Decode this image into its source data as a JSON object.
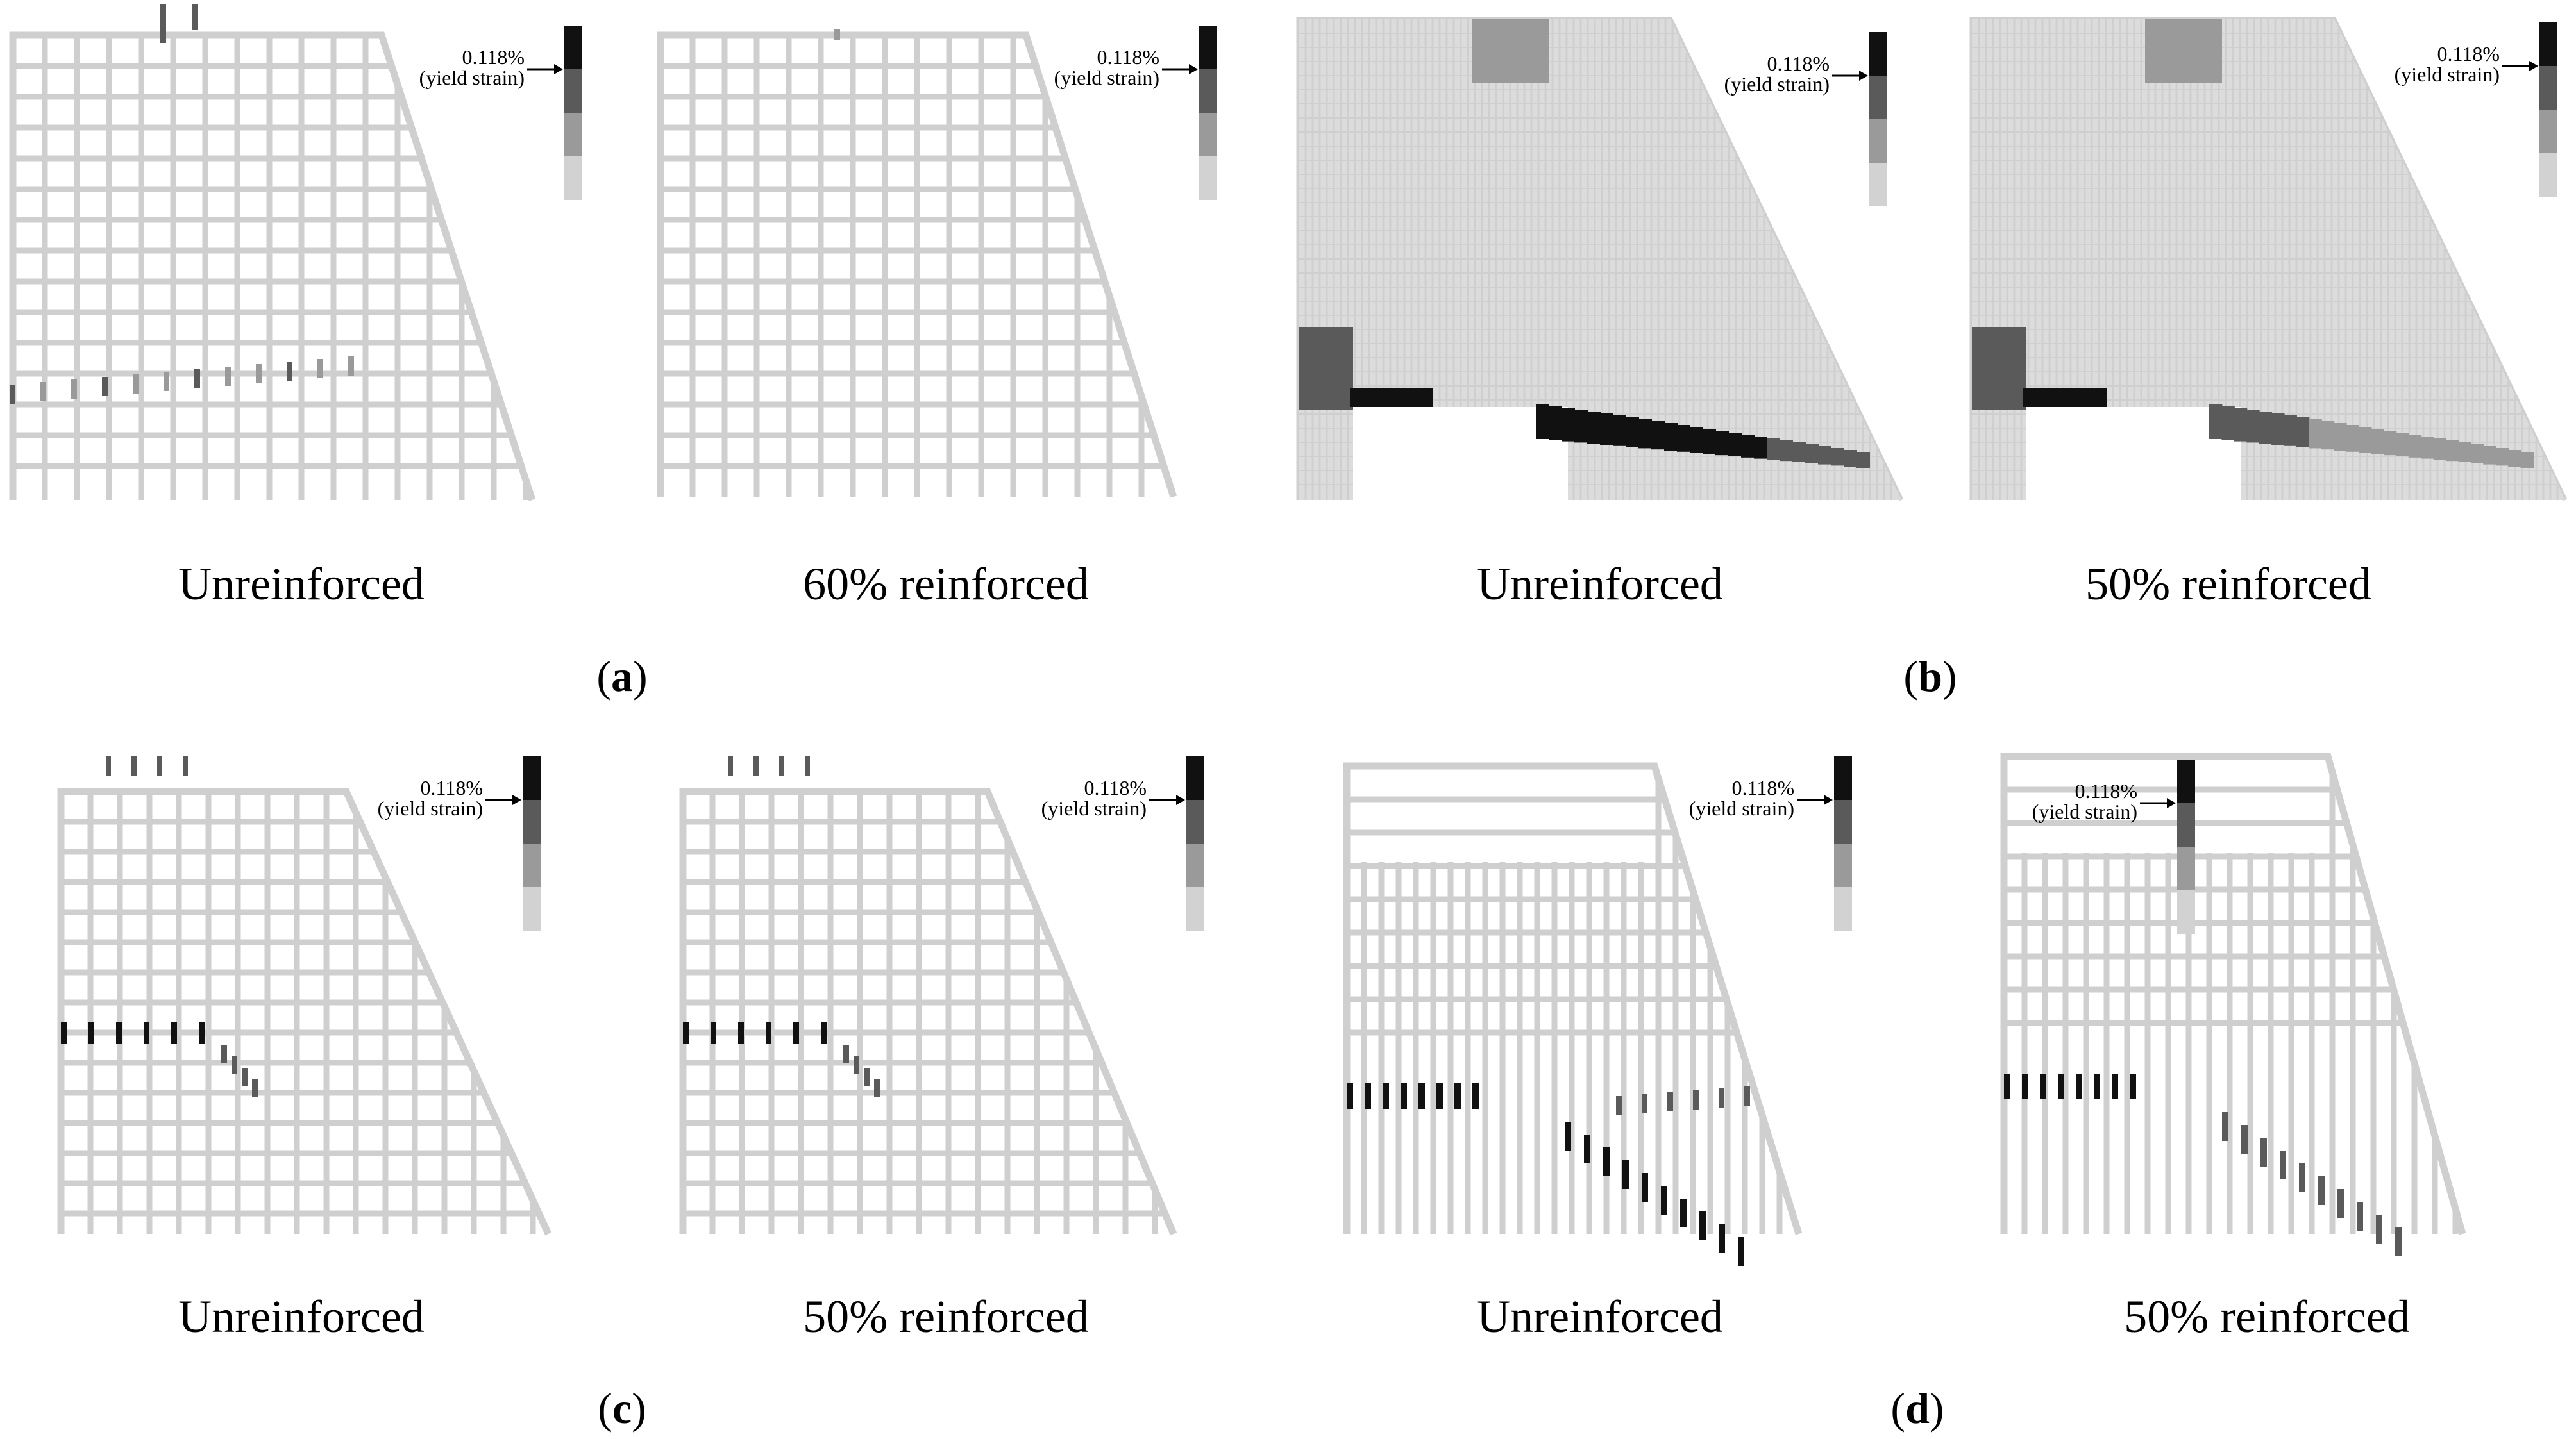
{
  "legend": {
    "value_label": "0.118%",
    "note": "(yield strain)",
    "shades": [
      "#111111",
      "#5a5a5a",
      "#9a9a9a",
      "#d2d2d2"
    ]
  },
  "grid_color": "#cfcfcf",
  "panels": [
    {
      "id": "a",
      "letter": "a",
      "mode": "grid",
      "left": {
        "caption": "Unreinforced",
        "crack": "dashes-bottom",
        "intensity": 0.6
      },
      "right": {
        "caption": "60% reinforced",
        "crack": "none",
        "intensity": 0.0
      }
    },
    {
      "id": "b",
      "letter": "b",
      "mode": "dense",
      "left": {
        "caption": "Unreinforced",
        "crack": "base-band",
        "intensity": 1.0
      },
      "right": {
        "caption": "50% reinforced",
        "crack": "base-band",
        "intensity": 0.55
      }
    },
    {
      "id": "c",
      "letter": "c",
      "mode": "grid",
      "left": {
        "caption": "Unreinforced",
        "crack": "dashes-mid",
        "intensity": 0.9
      },
      "right": {
        "caption": "50% reinforced",
        "crack": "dashes-mid",
        "intensity": 0.8
      }
    },
    {
      "id": "d",
      "letter": "d",
      "mode": "sparse",
      "left": {
        "caption": "Unreinforced",
        "crack": "diagonal",
        "intensity": 1.0
      },
      "right": {
        "caption": "50% reinforced",
        "crack": "diagonal",
        "intensity": 0.8
      }
    }
  ]
}
